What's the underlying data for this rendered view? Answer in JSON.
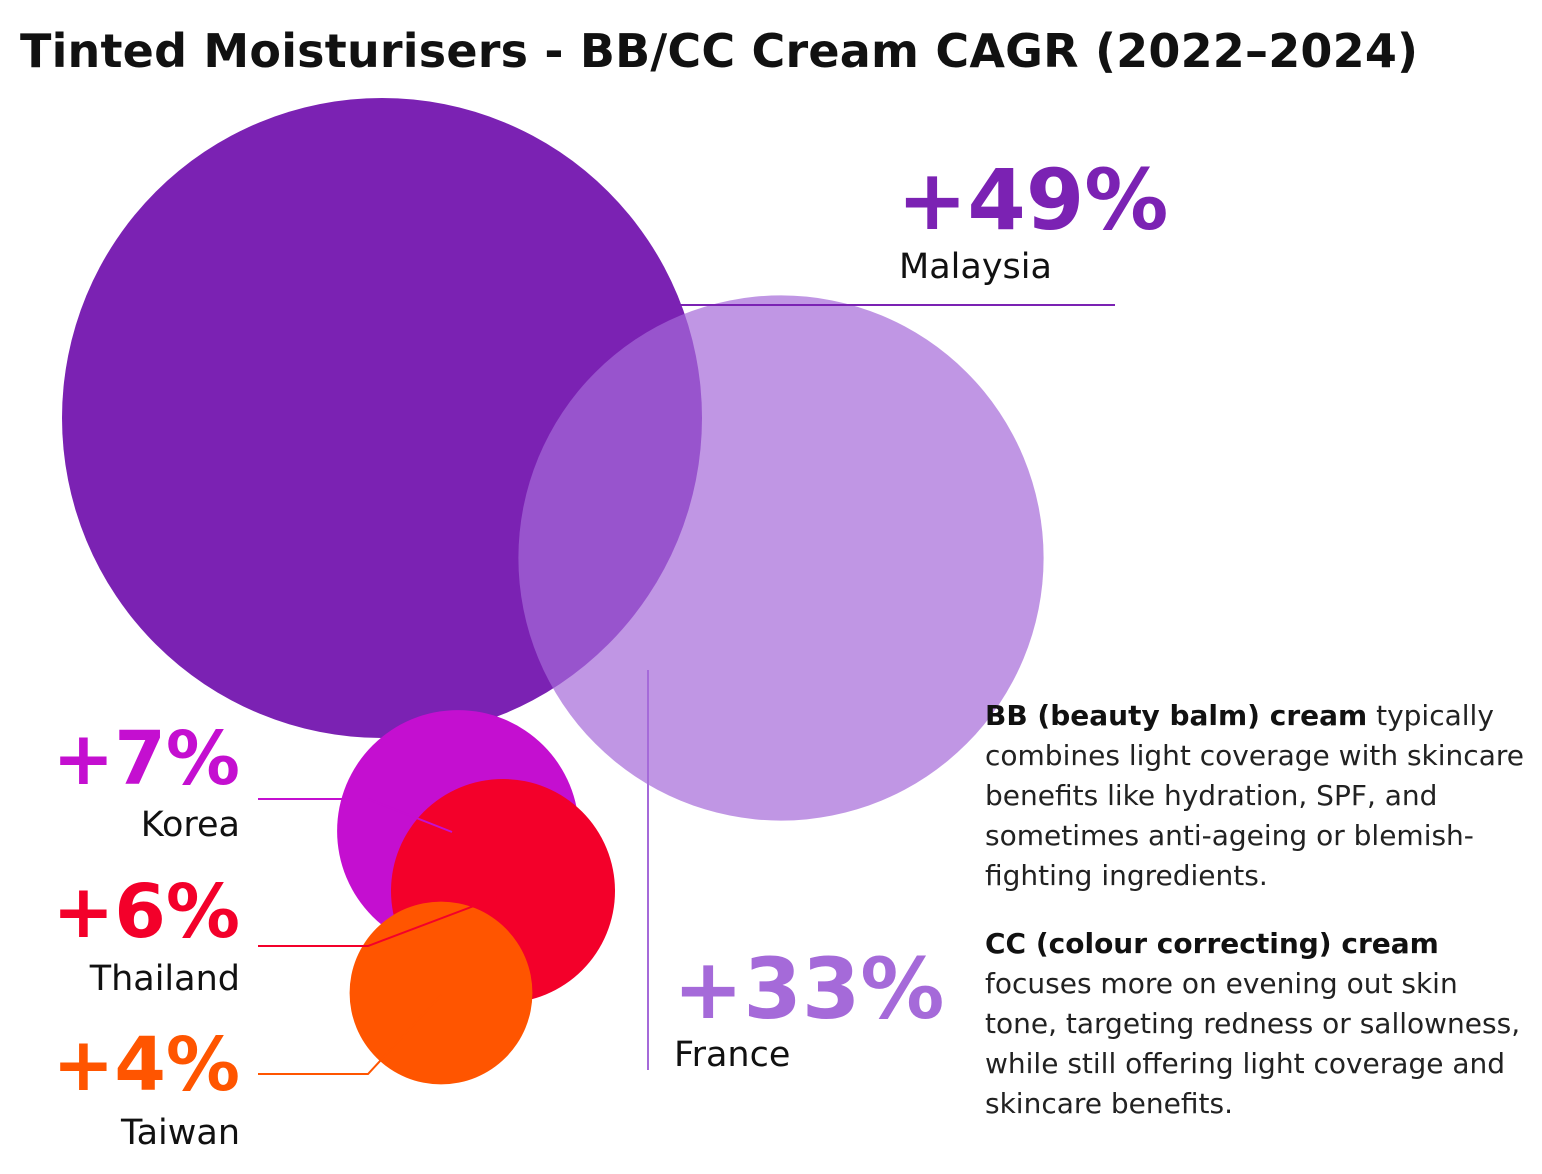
{
  "title": "Tinted Moisturisers - BB/CC Cream CAGR (2022–2024)",
  "chart_data": {
    "type": "bubble",
    "title": "Tinted Moisturisers - BB/CC Cream CAGR (2022–2024)",
    "metric": "CAGR",
    "period": "2022–2024",
    "series": [
      {
        "name": "Malaysia",
        "value": 49,
        "label": "+49%",
        "color": "#7b22b3"
      },
      {
        "name": "France",
        "value": 33,
        "label": "+33%",
        "color": "#a56ad9"
      },
      {
        "name": "Korea",
        "value": 7,
        "label": "+7%",
        "color": "#c40fd0"
      },
      {
        "name": "Thailand",
        "value": 6,
        "label": "+6%",
        "color": "#f3002a"
      },
      {
        "name": "Taiwan",
        "value": 4,
        "label": "+4%",
        "color": "#ff5500"
      }
    ]
  },
  "notes": {
    "bb_term": "BB (beauty balm) cream",
    "bb_text": " typically combines light coverage with skincare benefits like hydration, SPF, and sometimes anti-ageing or blemish-fighting ingredients.",
    "cc_term": "CC (colour correcting) cream",
    "cc_text": " focuses more on evening out skin tone, targeting redness or sallowness, while still offering light coverage and skincare benefits."
  }
}
